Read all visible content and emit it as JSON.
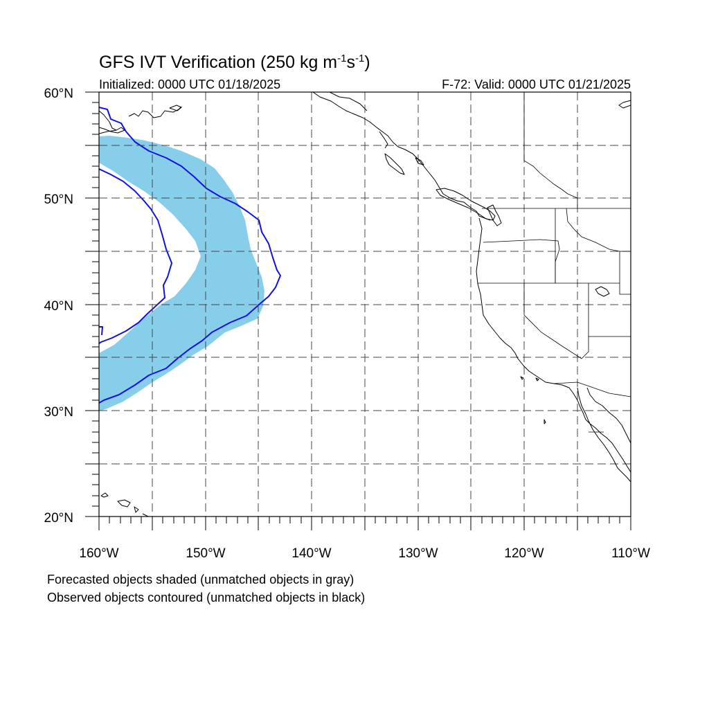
{
  "title": {
    "main": "GFS IVT Verification (250 kg m",
    "sup1": "-1",
    "mid": "s",
    "sup2": "-1",
    "end": ")"
  },
  "subtitle": {
    "left": "Initialized: 0000 UTC 01/18/2025",
    "right": "F-72: Valid: 0000 UTC 01/21/2025"
  },
  "map": {
    "lon_range": [
      -160,
      -110
    ],
    "lat_range": [
      20,
      60
    ],
    "x_tick_labels": [
      "160°W",
      "150°W",
      "140°W",
      "130°W",
      "120°W",
      "110°W"
    ],
    "y_tick_labels": [
      "60°N",
      "50°N",
      "40°N",
      "30°N",
      "20°N"
    ],
    "forecast_color": "#87ceeb",
    "observed_color": "#1010e0"
  },
  "notes": {
    "line1": "Forecasted objects shaded (unmatched objects in gray)",
    "line2": "Observed objects contoured (unmatched objects in black)"
  }
}
